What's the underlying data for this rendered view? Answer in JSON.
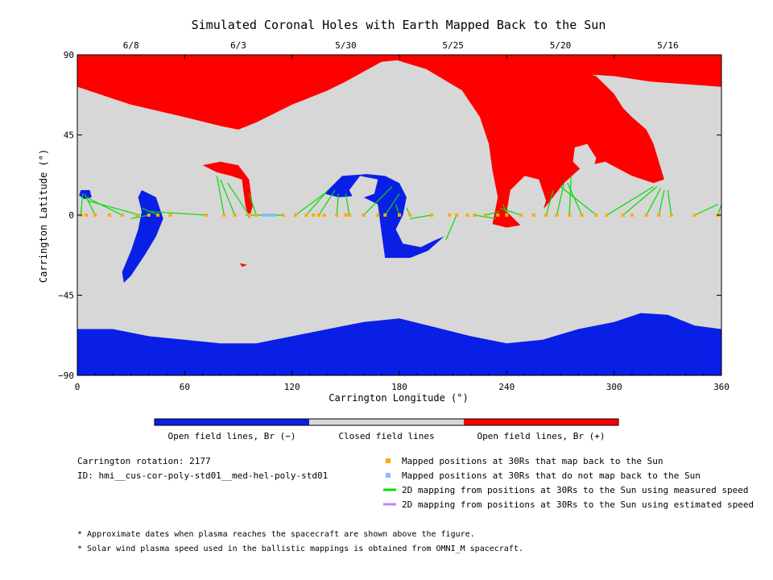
{
  "chart_data": {
    "type": "map",
    "title": "Simulated Coronal Holes with Earth Mapped Back to the Sun",
    "xlabel": "Carrington Longitude (°)",
    "ylabel": "Carrington Latitude (°)",
    "xlim": [
      0,
      360
    ],
    "ylim": [
      -90,
      90
    ],
    "x_ticks": [
      0,
      60,
      120,
      180,
      240,
      300,
      360
    ],
    "y_ticks": [
      90,
      45,
      0,
      -45,
      -90
    ],
    "top_date_ticks": [
      {
        "label": "6/8",
        "lon": 30
      },
      {
        "label": "6/3",
        "lon": 90
      },
      {
        "label": "5/30",
        "lon": 150
      },
      {
        "label": "5/25",
        "lon": 210
      },
      {
        "label": "5/20",
        "lon": 270
      },
      {
        "label": "5/16",
        "lon": 330
      }
    ],
    "colors": {
      "open_negative": "#0a1fe6",
      "closed": "#d7d7d7",
      "open_positive": "#ff0000",
      "mapped": "#ffaa00",
      "unmapped": "#7fbfff",
      "measured_line": "#00dd00",
      "estimated_line": "#c080ff"
    },
    "colorbar": [
      {
        "label": "Open field lines, Br (−)",
        "color": "#0a1fe6"
      },
      {
        "label": "Closed field lines",
        "color": "#d7d7d7"
      },
      {
        "label": "Open field lines, Br (+)",
        "color": "#ff0000"
      }
    ],
    "regions": {
      "north_pole_positive": [
        [
          0,
          90
        ],
        [
          360,
          90
        ],
        [
          360,
          72
        ],
        [
          320,
          75
        ],
        [
          300,
          78
        ],
        [
          270,
          80
        ],
        [
          240,
          82
        ],
        [
          210,
          85
        ],
        [
          190,
          88
        ],
        [
          170,
          86
        ],
        [
          150,
          75
        ],
        [
          140,
          70
        ],
        [
          120,
          62
        ],
        [
          100,
          52
        ],
        [
          90,
          48
        ],
        [
          80,
          50
        ],
        [
          60,
          55
        ],
        [
          30,
          62
        ],
        [
          0,
          72
        ]
      ],
      "positive_arm": [
        [
          160,
          90
        ],
        [
          175,
          88
        ],
        [
          195,
          82
        ],
        [
          215,
          70
        ],
        [
          225,
          55
        ],
        [
          230,
          40
        ],
        [
          232,
          25
        ],
        [
          235,
          10
        ],
        [
          232,
          -5
        ],
        [
          240,
          -7
        ],
        [
          252,
          -5
        ],
        [
          262,
          5
        ],
        [
          272,
          18
        ],
        [
          282,
          27
        ],
        [
          295,
          30
        ],
        [
          310,
          22
        ],
        [
          322,
          18
        ],
        [
          328,
          20
        ],
        [
          322,
          40
        ],
        [
          318,
          48
        ],
        [
          310,
          55
        ],
        [
          305,
          60
        ],
        [
          300,
          68
        ],
        [
          290,
          78
        ],
        [
          260,
          88
        ],
        [
          220,
          90
        ]
      ],
      "positive_blob_west": [
        [
          70,
          28
        ],
        [
          80,
          30
        ],
        [
          90,
          28
        ],
        [
          96,
          20
        ],
        [
          98,
          5
        ],
        [
          96,
          -2
        ],
        [
          94,
          5
        ],
        [
          92,
          20
        ],
        [
          86,
          22
        ],
        [
          78,
          24
        ]
      ],
      "positive_speck": [
        [
          91,
          -27
        ],
        [
          95,
          -28
        ],
        [
          92,
          -29
        ]
      ],
      "south_pole_negative": [
        [
          0,
          -90
        ],
        [
          360,
          -90
        ],
        [
          360,
          -64
        ],
        [
          345,
          -62
        ],
        [
          330,
          -56
        ],
        [
          315,
          -55
        ],
        [
          300,
          -60
        ],
        [
          280,
          -64
        ],
        [
          260,
          -70
        ],
        [
          240,
          -72
        ],
        [
          220,
          -68
        ],
        [
          200,
          -63
        ],
        [
          180,
          -58
        ],
        [
          160,
          -60
        ],
        [
          140,
          -64
        ],
        [
          120,
          -68
        ],
        [
          100,
          -72
        ],
        [
          80,
          -72
        ],
        [
          60,
          -70
        ],
        [
          40,
          -68
        ],
        [
          20,
          -64
        ],
        [
          0,
          -64
        ]
      ],
      "negative_crescent": [
        [
          36,
          14
        ],
        [
          44,
          10
        ],
        [
          48,
          -2
        ],
        [
          44,
          -12
        ],
        [
          38,
          -22
        ],
        [
          30,
          -34
        ],
        [
          26,
          -38
        ],
        [
          25,
          -32
        ],
        [
          30,
          -20
        ],
        [
          34,
          -8
        ],
        [
          36,
          2
        ],
        [
          34,
          10
        ]
      ],
      "negative_small_west": [
        [
          2,
          14
        ],
        [
          7,
          14
        ],
        [
          8,
          10
        ],
        [
          4,
          9
        ],
        [
          1,
          11
        ]
      ],
      "negative_center": [
        [
          138,
          12
        ],
        [
          148,
          22
        ],
        [
          162,
          23
        ],
        [
          172,
          22
        ],
        [
          180,
          18
        ],
        [
          184,
          10
        ],
        [
          182,
          0
        ],
        [
          178,
          -8
        ],
        [
          182,
          -16
        ],
        [
          192,
          -18
        ],
        [
          200,
          -14
        ],
        [
          205,
          -12
        ],
        [
          196,
          -20
        ],
        [
          186,
          -24
        ],
        [
          172,
          -24
        ],
        [
          170,
          -10
        ],
        [
          168,
          6
        ],
        [
          158,
          11
        ],
        [
          146,
          10
        ]
      ]
    },
    "holes": {
      "closed_loop_north": [
        [
          158,
          22
        ],
        [
          168,
          20
        ],
        [
          166,
          12
        ],
        [
          155,
          8
        ],
        [
          152,
          14
        ]
      ],
      "closed_loop_red_1": [
        [
          250,
          22
        ],
        [
          258,
          20
        ],
        [
          262,
          8
        ],
        [
          258,
          -4
        ],
        [
          248,
          -6
        ],
        [
          240,
          2
        ],
        [
          242,
          14
        ]
      ],
      "closed_loop_red_2": [
        [
          278,
          38
        ],
        [
          285,
          40
        ],
        [
          290,
          32
        ],
        [
          288,
          24
        ],
        [
          282,
          25
        ],
        [
          277,
          30
        ]
      ]
    },
    "mapped_positions_lon": [
      2,
      5,
      10,
      18,
      25,
      33,
      40,
      45,
      52,
      72,
      82,
      88,
      96,
      100,
      110,
      115,
      122,
      128,
      132,
      135,
      138,
      145,
      150,
      152,
      160,
      168,
      172,
      180,
      186,
      198,
      208,
      212,
      218,
      222,
      228,
      235,
      240,
      248,
      255,
      262,
      268,
      275,
      282,
      290,
      296,
      305,
      310,
      318,
      325,
      332,
      345,
      358
    ],
    "unmapped_positions_lon": [
      104,
      106,
      108,
      110
    ],
    "mapping_lines": [
      {
        "from_lon": 2,
        "to": [
          3,
          12
        ]
      },
      {
        "from_lon": 10,
        "to": [
          4,
          12
        ]
      },
      {
        "from_lon": 25,
        "to": [
          5,
          10
        ]
      },
      {
        "from_lon": 35,
        "to": [
          6,
          8
        ]
      },
      {
        "from_lon": 40,
        "to": [
          30,
          -2
        ]
      },
      {
        "from_lon": 45,
        "to": [
          36,
          4
        ]
      },
      {
        "from_lon": 72,
        "to": [
          40,
          2
        ]
      },
      {
        "from_lon": 82,
        "to": [
          78,
          22
        ]
      },
      {
        "from_lon": 88,
        "to": [
          80,
          20
        ]
      },
      {
        "from_lon": 96,
        "to": [
          84,
          18
        ]
      },
      {
        "from_lon": 100,
        "to": [
          96,
          12
        ]
      },
      {
        "from_lon": 115,
        "to": [
          94,
          0
        ]
      },
      {
        "from_lon": 122,
        "to": [
          138,
          12
        ]
      },
      {
        "from_lon": 128,
        "to": [
          140,
          14
        ]
      },
      {
        "from_lon": 135,
        "to": [
          144,
          14
        ]
      },
      {
        "from_lon": 145,
        "to": [
          146,
          12
        ]
      },
      {
        "from_lon": 152,
        "to": [
          150,
          12
        ]
      },
      {
        "from_lon": 160,
        "to": [
          176,
          16
        ]
      },
      {
        "from_lon": 172,
        "to": [
          180,
          12
        ]
      },
      {
        "from_lon": 180,
        "to": [
          178,
          6
        ]
      },
      {
        "from_lon": 186,
        "to": [
          184,
          4
        ]
      },
      {
        "from_lon": 198,
        "to": [
          186,
          -2
        ]
      },
      {
        "from_lon": 212,
        "to": [
          206,
          -14
        ]
      },
      {
        "from_lon": 222,
        "to": [
          234,
          -2
        ]
      },
      {
        "from_lon": 228,
        "to": [
          236,
          2
        ]
      },
      {
        "from_lon": 240,
        "to": [
          238,
          6
        ]
      },
      {
        "from_lon": 248,
        "to": [
          236,
          4
        ]
      },
      {
        "from_lon": 262,
        "to": [
          266,
          14
        ]
      },
      {
        "from_lon": 268,
        "to": [
          272,
          18
        ]
      },
      {
        "from_lon": 275,
        "to": [
          276,
          22
        ]
      },
      {
        "from_lon": 282,
        "to": [
          274,
          18
        ]
      },
      {
        "from_lon": 290,
        "to": [
          270,
          16
        ]
      },
      {
        "from_lon": 296,
        "to": [
          322,
          16
        ]
      },
      {
        "from_lon": 305,
        "to": [
          324,
          16
        ]
      },
      {
        "from_lon": 318,
        "to": [
          326,
          15
        ]
      },
      {
        "from_lon": 325,
        "to": [
          328,
          14
        ]
      },
      {
        "from_lon": 332,
        "to": [
          330,
          14
        ]
      },
      {
        "from_lon": 345,
        "to": [
          358,
          6
        ]
      },
      {
        "from_lon": 358,
        "to": [
          360,
          6
        ]
      }
    ]
  },
  "legend": {
    "mapped": "Mapped positions at 30Rs that map back to the Sun",
    "unmapped": "Mapped positions at 30Rs that do not map back to the Sun",
    "measured": "2D mapping from positions at 30Rs to the Sun using measured speed",
    "estimated": "2D mapping from positions at 30Rs to the Sun using estimated speed"
  },
  "info": {
    "rotation": "Carrington rotation: 2177",
    "id": "ID: hmi__cus-cor-poly-std01__med-hel-poly-std01"
  },
  "footnotes": [
    "* Approximate dates when plasma reaches the spacecraft are shown above the figure.",
    "* Solar wind plasma speed used in the ballistic mappings is obtained from OMNI_M spacecraft."
  ]
}
